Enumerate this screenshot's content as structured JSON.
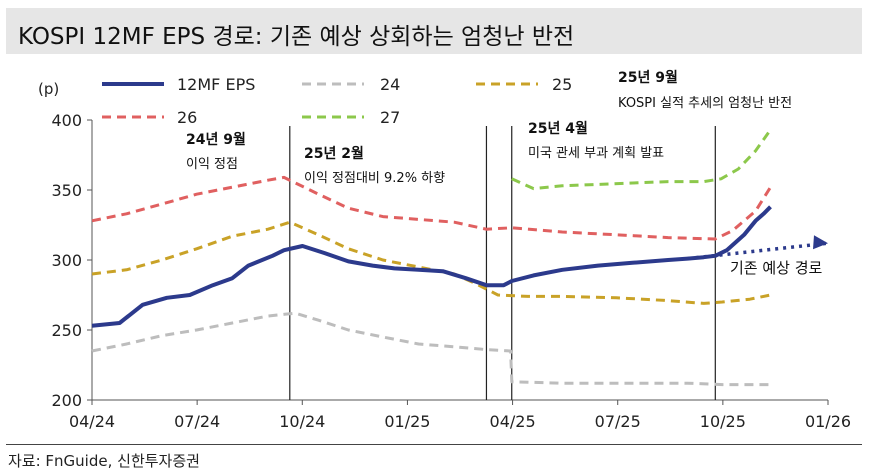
{
  "title": "KOSPI 12MF EPS 경로: 기존 예상 상회하는 엄청난 반전",
  "source": "자료: FnGuide, 신한투자증권",
  "colors": {
    "eps": "#2c3a8c",
    "s24": "#bdbdbd",
    "s25": "#c9a227",
    "s26": "#e06060",
    "s27": "#8cc84b",
    "vline": "#222222",
    "axis": "#555555"
  },
  "chart_data": {
    "type": "line",
    "ylabel": "(p)",
    "ylim": [
      200,
      400
    ],
    "yticks": [
      200,
      250,
      300,
      350,
      400
    ],
    "xlabels": [
      "04/24",
      "07/24",
      "10/24",
      "01/25",
      "04/25",
      "07/25",
      "10/25",
      "01/26"
    ],
    "xrange": [
      "2024-04-01",
      "2026-01-01"
    ],
    "series": [
      {
        "key": "eps",
        "name": "12MF EPS",
        "style": "solid",
        "x": [
          "2024-04-01",
          "2024-04-25",
          "2024-05-15",
          "2024-06-05",
          "2024-06-25",
          "2024-07-15",
          "2024-08-01",
          "2024-08-15",
          "2024-09-05",
          "2024-09-15",
          "2024-10-01",
          "2024-10-20",
          "2024-11-10",
          "2024-12-01",
          "2024-12-20",
          "2025-01-10",
          "2025-01-31",
          "2025-02-20",
          "2025-03-10",
          "2025-03-25",
          "2025-04-01",
          "2025-04-20",
          "2025-05-15",
          "2025-06-15",
          "2025-07-15",
          "2025-08-15",
          "2025-09-01",
          "2025-09-15",
          "2025-09-25",
          "2025-10-05",
          "2025-10-20",
          "2025-10-30",
          "2025-11-06",
          "2025-11-12"
        ],
        "y": [
          253,
          255,
          268,
          273,
          275,
          282,
          287,
          296,
          303,
          307,
          310,
          305,
          299,
          296,
          294,
          293,
          292,
          287,
          282,
          282,
          285,
          289,
          293,
          296,
          298,
          300,
          301,
          302,
          303,
          307,
          318,
          328,
          333,
          338
        ]
      },
      {
        "key": "s24",
        "name": "24",
        "style": "dashed",
        "x": [
          "2024-04-01",
          "2024-05-01",
          "2024-06-01",
          "2024-07-01",
          "2024-08-01",
          "2024-09-01",
          "2024-09-25",
          "2024-10-15",
          "2024-11-10",
          "2024-12-10",
          "2025-01-10",
          "2025-02-10",
          "2025-03-10",
          "2025-03-31",
          "2025-04-01",
          "2025-05-15",
          "2025-07-01",
          "2025-09-01",
          "2025-10-01",
          "2025-11-12"
        ],
        "y": [
          235,
          240,
          246,
          250,
          255,
          260,
          262,
          257,
          250,
          245,
          240,
          238,
          236,
          235,
          213,
          212,
          212,
          212,
          211,
          211
        ]
      },
      {
        "key": "s25",
        "name": "25",
        "style": "dashed",
        "x": [
          "2024-04-01",
          "2024-05-01",
          "2024-06-01",
          "2024-07-01",
          "2024-08-01",
          "2024-09-01",
          "2024-09-20",
          "2024-10-15",
          "2024-11-10",
          "2024-12-10",
          "2025-01-10",
          "2025-02-10",
          "2025-03-01",
          "2025-03-20",
          "2025-04-15",
          "2025-05-15",
          "2025-07-01",
          "2025-08-15",
          "2025-09-15",
          "2025-10-01",
          "2025-10-25",
          "2025-11-12"
        ],
        "y": [
          290,
          293,
          300,
          308,
          317,
          322,
          327,
          318,
          308,
          300,
          295,
          290,
          283,
          275,
          274,
          274,
          273,
          271,
          269,
          270,
          272,
          275
        ]
      },
      {
        "key": "s26",
        "name": "26",
        "style": "dashed",
        "x": [
          "2024-04-01",
          "2024-05-01",
          "2024-06-01",
          "2024-07-01",
          "2024-08-01",
          "2024-09-01",
          "2024-09-15",
          "2024-10-15",
          "2024-11-10",
          "2024-12-10",
          "2025-01-10",
          "2025-02-10",
          "2025-03-10",
          "2025-04-01",
          "2025-05-15",
          "2025-07-01",
          "2025-08-15",
          "2025-09-25",
          "2025-10-10",
          "2025-10-30",
          "2025-11-12"
        ],
        "y": [
          328,
          333,
          340,
          347,
          352,
          357,
          359,
          347,
          337,
          331,
          329,
          327,
          322,
          323,
          320,
          318,
          316,
          315,
          321,
          335,
          352
        ]
      },
      {
        "key": "s27",
        "name": "27",
        "style": "dashed",
        "x": [
          "2025-04-01",
          "2025-04-20",
          "2025-05-15",
          "2025-06-15",
          "2025-07-15",
          "2025-08-15",
          "2025-09-15",
          "2025-09-30",
          "2025-10-15",
          "2025-10-30",
          "2025-11-12"
        ],
        "y": [
          358,
          351,
          353,
          354,
          355,
          356,
          356,
          358,
          365,
          378,
          393
        ]
      },
      {
        "key": "proj",
        "name": "기존 예상 경로",
        "style": "dotted",
        "x": [
          "2025-09-01",
          "2026-01-01"
        ],
        "y": [
          301,
          312
        ]
      }
    ],
    "vlines": [
      "2024-09-20",
      "2025-03-10",
      "2025-04-01",
      "2025-09-25"
    ],
    "annotations": [
      {
        "date": "2024-09-20",
        "title": "24년 9월",
        "text": "이익 정점"
      },
      {
        "date": "2025-02-01",
        "title": "25년 2월",
        "text": "이익 정점대비 9.2% 하향"
      },
      {
        "date": "2025-04-01",
        "title": "25년 4월",
        "text": "미국 관세 부과 계획 발표"
      },
      {
        "date": "2025-09-01",
        "title": "25년 9월",
        "text": "KOSPI 실적 추세의 엄청난 반전"
      }
    ],
    "projection_label": "기존 예상 경로"
  }
}
